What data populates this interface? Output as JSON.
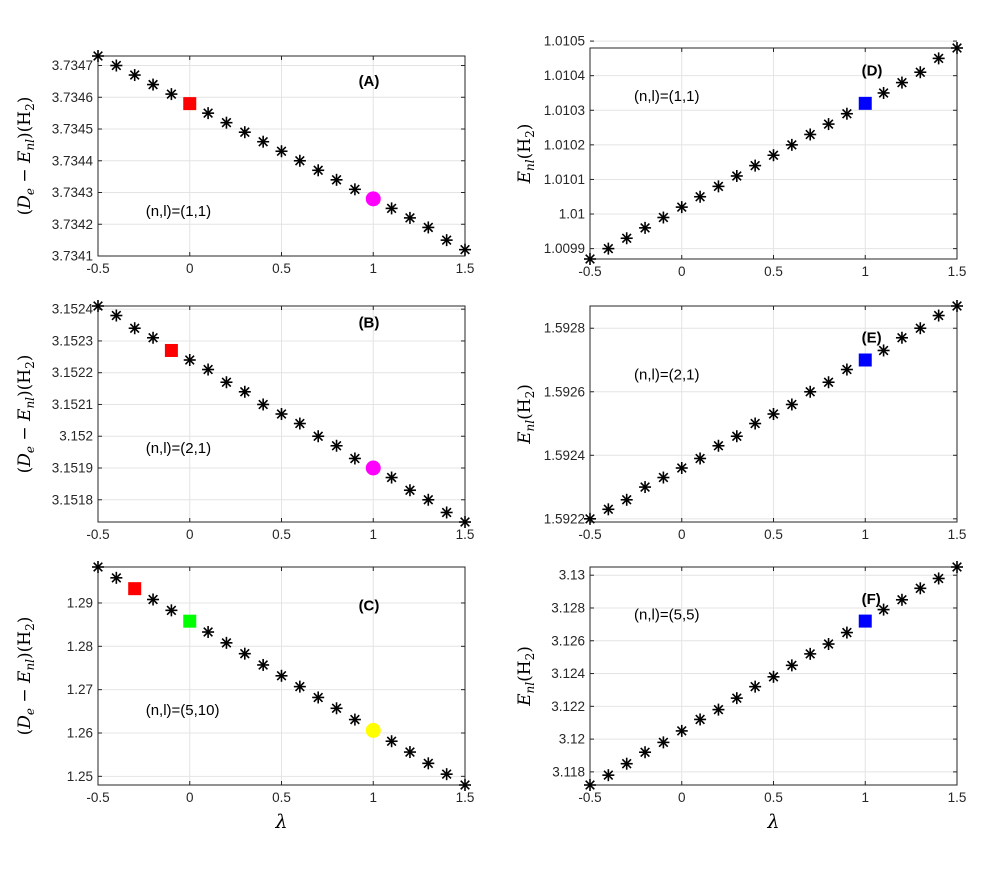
{
  "chart_data": [
    {
      "type": "scatter",
      "panel_label": "(A)",
      "annotation": "(n,l)=(1,1)",
      "ylabel": "(D_e − E_nl)(H₂)",
      "xlabel": "",
      "xlim": [
        -0.5,
        1.5
      ],
      "ylim": [
        3.7341,
        3.73473
      ],
      "grid": true,
      "xticks": [
        -0.5,
        0,
        0.5,
        1,
        1.5
      ],
      "xtick_labels": [
        "-0.5",
        "0",
        "0.5",
        "1",
        "1.5"
      ],
      "yticks": [
        3.7341,
        3.7342,
        3.7343,
        3.7344,
        3.7345,
        3.7346,
        3.7347
      ],
      "ytick_labels": [
        "3.7341",
        "3.7342",
        "3.7343",
        "3.7344",
        "3.7345",
        "3.7346",
        "3.7347"
      ],
      "x": [
        -0.5,
        -0.4,
        -0.3,
        -0.2,
        -0.1,
        0,
        0.1,
        0.2,
        0.3,
        0.4,
        0.5,
        0.6,
        0.7,
        0.8,
        0.9,
        1.0,
        1.1,
        1.2,
        1.3,
        1.4,
        1.5
      ],
      "y": [
        3.73473,
        3.7347,
        3.73467,
        3.73464,
        3.73461,
        3.73458,
        3.73455,
        3.73452,
        3.73449,
        3.73446,
        3.73443,
        3.7344,
        3.73437,
        3.73434,
        3.73431,
        3.73428,
        3.73425,
        3.73422,
        3.73419,
        3.73415,
        3.73412
      ],
      "highlights": [
        {
          "x": 0,
          "y": 3.73458,
          "marker": "square",
          "color": "#ff0000"
        },
        {
          "x": 1,
          "y": 3.73428,
          "marker": "circle",
          "color": "#ff00ff"
        }
      ]
    },
    {
      "type": "scatter",
      "panel_label": "(B)",
      "annotation": "(n,l)=(2,1)",
      "ylabel": "(D_e − E_nl)(H₂)",
      "xlabel": "",
      "xlim": [
        -0.5,
        1.5
      ],
      "ylim": [
        3.15173,
        3.15241
      ],
      "grid": true,
      "xticks": [
        -0.5,
        0,
        0.5,
        1,
        1.5
      ],
      "xtick_labels": [
        "-0.5",
        "0",
        "0.5",
        "1",
        "1.5"
      ],
      "yticks": [
        3.1518,
        3.1519,
        3.152,
        3.1521,
        3.1522,
        3.1523,
        3.1524
      ],
      "ytick_labels": [
        "3.1518",
        "3.1519",
        "3.152",
        "3.1521",
        "3.1522",
        "3.1523",
        "3.1524"
      ],
      "x": [
        -0.5,
        -0.4,
        -0.3,
        -0.2,
        -0.1,
        0,
        0.1,
        0.2,
        0.3,
        0.4,
        0.5,
        0.6,
        0.7,
        0.8,
        0.9,
        1.0,
        1.1,
        1.2,
        1.3,
        1.4,
        1.5
      ],
      "y": [
        3.15241,
        3.15238,
        3.15234,
        3.15231,
        3.15227,
        3.15224,
        3.15221,
        3.15217,
        3.15214,
        3.1521,
        3.15207,
        3.15204,
        3.152,
        3.15197,
        3.15193,
        3.1519,
        3.15187,
        3.15183,
        3.1518,
        3.15176,
        3.15173
      ],
      "highlights": [
        {
          "x": -0.1,
          "y": 3.15227,
          "marker": "square",
          "color": "#ff0000"
        },
        {
          "x": 1,
          "y": 3.1519,
          "marker": "circle",
          "color": "#ff00ff"
        }
      ]
    },
    {
      "type": "scatter",
      "panel_label": "(C)",
      "annotation": "(n,l)=(5,10)",
      "ylabel": "(D_e − E_nl)(H₂)",
      "xlabel": "λ",
      "xlim": [
        -0.5,
        1.5
      ],
      "ylim": [
        1.248,
        1.2983
      ],
      "grid": true,
      "xticks": [
        -0.5,
        0,
        0.5,
        1,
        1.5
      ],
      "xtick_labels": [
        "-0.5",
        "0",
        "0.5",
        "1",
        "1.5"
      ],
      "yticks": [
        1.25,
        1.26,
        1.27,
        1.28,
        1.29
      ],
      "ytick_labels": [
        "1.25",
        "1.26",
        "1.27",
        "1.28",
        "1.29"
      ],
      "x": [
        -0.5,
        -0.4,
        -0.3,
        -0.2,
        -0.1,
        0,
        0.1,
        0.2,
        0.3,
        0.4,
        0.5,
        0.6,
        0.7,
        0.8,
        0.9,
        1.0,
        1.1,
        1.2,
        1.3,
        1.4,
        1.5
      ],
      "y": [
        1.2983,
        1.2958,
        1.2933,
        1.2908,
        1.2883,
        1.2858,
        1.2833,
        1.2808,
        1.2783,
        1.2757,
        1.2732,
        1.2707,
        1.2682,
        1.2657,
        1.2631,
        1.2606,
        1.2581,
        1.2556,
        1.253,
        1.2505,
        1.248
      ],
      "highlights": [
        {
          "x": -0.3,
          "y": 1.2933,
          "marker": "square",
          "color": "#ff0000"
        },
        {
          "x": 0,
          "y": 1.2858,
          "marker": "square",
          "color": "#00ff00"
        },
        {
          "x": 1,
          "y": 1.2606,
          "marker": "circle",
          "color": "#ffff00"
        }
      ]
    },
    {
      "type": "scatter",
      "panel_label": "(D)",
      "annotation": "(n,l)=(1,1)",
      "ylabel": "E_nl(H₂)",
      "xlabel": "",
      "xlim": [
        -0.5,
        1.5
      ],
      "ylim": [
        1.00987,
        1.01048
      ],
      "grid": true,
      "xticks": [
        -0.5,
        0,
        0.5,
        1,
        1.5
      ],
      "xtick_labels": [
        "-0.5",
        "0",
        "0.5",
        "1",
        "1.5"
      ],
      "yticks": [
        1.0099,
        1.01,
        1.0101,
        1.0102,
        1.0103,
        1.0104,
        1.0105
      ],
      "ytick_labels": [
        "1.0099",
        "1.01",
        "1.0101",
        "1.0102",
        "1.0103",
        "1.0104",
        "1.0105"
      ],
      "x": [
        -0.5,
        -0.4,
        -0.3,
        -0.2,
        -0.1,
        0,
        0.1,
        0.2,
        0.3,
        0.4,
        0.5,
        0.6,
        0.7,
        0.8,
        0.9,
        1.0,
        1.1,
        1.2,
        1.3,
        1.4,
        1.5
      ],
      "y": [
        1.00987,
        1.0099,
        1.00993,
        1.00996,
        1.00999,
        1.01002,
        1.01005,
        1.01008,
        1.01011,
        1.01014,
        1.01017,
        1.0102,
        1.01023,
        1.01026,
        1.01029,
        1.01032,
        1.01035,
        1.01038,
        1.01041,
        1.01045,
        1.01048
      ],
      "highlights": [
        {
          "x": 1,
          "y": 1.01032,
          "marker": "square",
          "color": "#0000ff"
        }
      ]
    },
    {
      "type": "scatter",
      "panel_label": "(E)",
      "annotation": "(n,l)=(2,1)",
      "ylabel": "E_nl(H₂)",
      "xlabel": "",
      "xlim": [
        -0.5,
        1.5
      ],
      "ylim": [
        1.59219,
        1.59287
      ],
      "grid": true,
      "xticks": [
        -0.5,
        0,
        0.5,
        1,
        1.5
      ],
      "xtick_labels": [
        "-0.5",
        "0",
        "0.5",
        "1",
        "1.5"
      ],
      "yticks": [
        1.5922,
        1.5924,
        1.5926,
        1.5928
      ],
      "ytick_labels": [
        "1.5922",
        "1.5924",
        "1.5926",
        "1.5928"
      ],
      "x": [
        -0.5,
        -0.4,
        -0.3,
        -0.2,
        -0.1,
        0,
        0.1,
        0.2,
        0.3,
        0.4,
        0.5,
        0.6,
        0.7,
        0.8,
        0.9,
        1.0,
        1.1,
        1.2,
        1.3,
        1.4,
        1.5
      ],
      "y": [
        1.5922,
        1.59223,
        1.59226,
        1.5923,
        1.59233,
        1.59236,
        1.59239,
        1.59243,
        1.59246,
        1.5925,
        1.59253,
        1.59256,
        1.5926,
        1.59263,
        1.59267,
        1.5927,
        1.59273,
        1.59277,
        1.5928,
        1.59284,
        1.59287
      ],
      "highlights": [
        {
          "x": 1,
          "y": 1.5927,
          "marker": "square",
          "color": "#0000ff"
        }
      ]
    },
    {
      "type": "scatter",
      "panel_label": "(F)",
      "annotation": "(n,l)=(5,5)",
      "ylabel": "E_nl(H₂)",
      "xlabel": "λ",
      "xlim": [
        -0.5,
        1.5
      ],
      "ylim": [
        3.1172,
        3.1305
      ],
      "grid": true,
      "xticks": [
        -0.5,
        0,
        0.5,
        1,
        1.5
      ],
      "xtick_labels": [
        "-0.5",
        "0",
        "0.5",
        "1",
        "1.5"
      ],
      "yticks": [
        3.118,
        3.12,
        3.122,
        3.124,
        3.126,
        3.128,
        3.13
      ],
      "ytick_labels": [
        "3.118",
        "3.12",
        "3.122",
        "3.124",
        "3.126",
        "3.128",
        "3.13"
      ],
      "x": [
        -0.5,
        -0.4,
        -0.3,
        -0.2,
        -0.1,
        0,
        0.1,
        0.2,
        0.3,
        0.4,
        0.5,
        0.6,
        0.7,
        0.8,
        0.9,
        1.0,
        1.1,
        1.2,
        1.3,
        1.4,
        1.5
      ],
      "y": [
        3.1172,
        3.1178,
        3.1185,
        3.1192,
        3.1198,
        3.1205,
        3.1212,
        3.1218,
        3.1225,
        3.1232,
        3.1238,
        3.1245,
        3.1252,
        3.1258,
        3.1265,
        3.1272,
        3.1279,
        3.1285,
        3.1292,
        3.1298,
        3.1305
      ],
      "highlights": [
        {
          "x": 1,
          "y": 3.1272,
          "marker": "square",
          "color": "#0000ff"
        }
      ]
    }
  ]
}
